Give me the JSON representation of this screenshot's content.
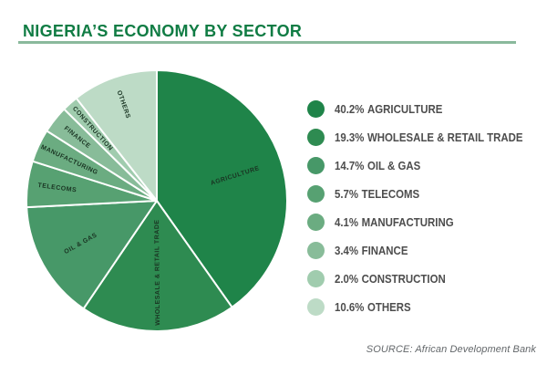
{
  "header": {
    "title": "NIGERIA’S ECONOMY BY SECTOR"
  },
  "footer": {
    "source": "SOURCE: African Development Bank"
  },
  "colors": {
    "title": "#107c44",
    "rule": "#8ab99c",
    "legend_text": "#4d4d4d",
    "pie_label": "#1a3523",
    "source_text": "#63676a",
    "background": "#ffffff",
    "slice_divider": "#ffffff"
  },
  "chart_data": {
    "type": "pie",
    "title": "NIGERIA’S ECONOMY BY SECTOR",
    "start_angle_deg": 0,
    "direction": "clockwise",
    "legend_position": "right",
    "slices": [
      {
        "label": "AGRICULTURE",
        "value": 40.2,
        "percent_label": "40.2%",
        "color": "#1f8449",
        "label_r": 0.63
      },
      {
        "label": "WHOLESALE & RETAIL TRADE",
        "value": 19.3,
        "percent_label": "19.3%",
        "color": "#2e8b51",
        "label_r": 0.55
      },
      {
        "label": "OIL & GAS",
        "value": 14.7,
        "percent_label": "14.7%",
        "color": "#479868",
        "label_r": 0.67
      },
      {
        "label": "TELECOMS",
        "value": 5.7,
        "percent_label": "5.7%",
        "color": "#57a172",
        "label_r": 0.77
      },
      {
        "label": "MANUFACTURING",
        "value": 4.1,
        "percent_label": "4.1%",
        "color": "#6bac81",
        "label_r": 0.74
      },
      {
        "label": "FINANCE",
        "value": 3.4,
        "percent_label": "3.4%",
        "color": "#88bc99",
        "label_r": 0.78
      },
      {
        "label": "CONSTRUCTION",
        "value": 2.0,
        "percent_label": "2.0%",
        "color": "#a0ccae",
        "label_r": 0.74
      },
      {
        "label": "OTHERS",
        "value": 10.6,
        "percent_label": "10.6%",
        "color": "#bddbc6",
        "label_r": 0.78
      }
    ]
  }
}
